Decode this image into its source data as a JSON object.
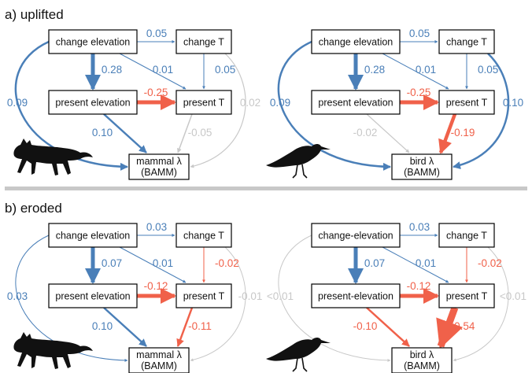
{
  "colors": {
    "positive": "#4a7fb8",
    "negative": "#f0614a",
    "nonsignificant": "#c8c8c8",
    "divider": "#c8c8c8",
    "silhouette": "#111111"
  },
  "panels": [
    {
      "title": "a) uplifted",
      "diagrams": [
        {
          "animal": "mammal",
          "nodes": {
            "change_elev": "change elevation",
            "change_T": "change T",
            "present_elev": "present elevation",
            "present_T": "present T",
            "response_line1": "mammal λ",
            "response_line2": "(BAMM)"
          },
          "edges": {
            "ce_ct": {
              "label": "0.05",
              "sign": "positive",
              "weight": 1
            },
            "ce_pe": {
              "label": "0.28",
              "sign": "positive",
              "weight": 5
            },
            "ce_pt": {
              "label": "0.01",
              "sign": "positive",
              "weight": 1
            },
            "ct_pt": {
              "label": "0.05",
              "sign": "positive",
              "weight": 1
            },
            "pe_pt": {
              "label": "-0.25",
              "sign": "negative",
              "weight": 5
            },
            "ce_r": {
              "label": "0.09",
              "sign": "positive",
              "weight": 2.5
            },
            "pe_r": {
              "label": "0.10",
              "sign": "positive",
              "weight": 2.5
            },
            "pt_r": {
              "label": "-0.05",
              "sign": "nonsignificant",
              "weight": 1.5
            },
            "ct_r": {
              "label": "0.02",
              "sign": "nonsignificant",
              "weight": 1.2
            }
          }
        },
        {
          "animal": "bird",
          "nodes": {
            "change_elev": "change elevation",
            "change_T": "change T",
            "present_elev": "present elevation",
            "present_T": "present T",
            "response_line1": "bird λ",
            "response_line2": "(BAMM)"
          },
          "edges": {
            "ce_ct": {
              "label": "0.05",
              "sign": "positive",
              "weight": 1
            },
            "ce_pe": {
              "label": "0.28",
              "sign": "positive",
              "weight": 5
            },
            "ce_pt": {
              "label": "0.01",
              "sign": "positive",
              "weight": 1
            },
            "ct_pt": {
              "label": "0.05",
              "sign": "positive",
              "weight": 1
            },
            "pe_pt": {
              "label": "-0.25",
              "sign": "negative",
              "weight": 5
            },
            "ce_r": {
              "label": "0.09",
              "sign": "positive",
              "weight": 2.5
            },
            "pe_r": {
              "label": "-0.02",
              "sign": "nonsignificant",
              "weight": 1.2
            },
            "pt_r": {
              "label": "-0.19",
              "sign": "negative",
              "weight": 4.5
            },
            "ct_r": {
              "label": "0.10",
              "sign": "positive",
              "weight": 2.5
            }
          }
        }
      ]
    },
    {
      "title": "b) eroded",
      "diagrams": [
        {
          "animal": "mammal",
          "nodes": {
            "change_elev": "change elevation",
            "change_T": "change T",
            "present_elev": "present elevation",
            "present_T": "present T",
            "response_line1": "mammal λ",
            "response_line2": "(BAMM)"
          },
          "edges": {
            "ce_ct": {
              "label": "0.03",
              "sign": "positive",
              "weight": 1
            },
            "ce_pe": {
              "label": "0.07",
              "sign": "positive",
              "weight": 5
            },
            "ce_pt": {
              "label": "0.01",
              "sign": "positive",
              "weight": 1
            },
            "ct_pt": {
              "label": "-0.02",
              "sign": "negative",
              "weight": 1
            },
            "pe_pt": {
              "label": "-0.12",
              "sign": "negative",
              "weight": 5
            },
            "ce_r": {
              "label": "0.03",
              "sign": "positive",
              "weight": 1
            },
            "pe_r": {
              "label": "0.10",
              "sign": "positive",
              "weight": 2.5
            },
            "pt_r": {
              "label": "-0.11",
              "sign": "negative",
              "weight": 2.5
            },
            "ct_r": {
              "label": "-0.01",
              "sign": "nonsignificant",
              "weight": 1
            }
          }
        },
        {
          "animal": "bird",
          "nodes": {
            "change_elev": "change-elevation",
            "change_T": "change T",
            "present_elev": "present-elevation",
            "present_T": "present T",
            "response_line1": "bird λ",
            "response_line2": "(BAMM)"
          },
          "edges": {
            "ce_ct": {
              "label": "0.03",
              "sign": "positive",
              "weight": 1
            },
            "ce_pe": {
              "label": "0.07",
              "sign": "positive",
              "weight": 5
            },
            "ce_pt": {
              "label": "0.01",
              "sign": "positive",
              "weight": 1
            },
            "ct_pt": {
              "label": "-0.02",
              "sign": "negative",
              "weight": 1
            },
            "pe_pt": {
              "label": "-0.12",
              "sign": "negative",
              "weight": 5
            },
            "ce_r": {
              "label": "<0.01",
              "sign": "nonsignificant",
              "weight": 1
            },
            "pe_r": {
              "label": "-0.10",
              "sign": "negative",
              "weight": 2.5
            },
            "pt_r": {
              "label": "-0.54",
              "sign": "negative",
              "weight": 9
            },
            "ct_r": {
              "label": "<0.01",
              "sign": "nonsignificant",
              "weight": 1
            }
          }
        }
      ]
    }
  ]
}
